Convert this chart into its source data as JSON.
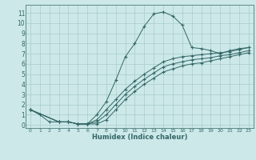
{
  "xlabel": "Humidex (Indice chaleur)",
  "bg_color": "#cce8e8",
  "grid_color": "#aacccc",
  "line_color": "#336666",
  "xlim": [
    -0.5,
    23.5
  ],
  "ylim": [
    -0.3,
    11.8
  ],
  "yticks": [
    0,
    1,
    2,
    3,
    4,
    5,
    6,
    7,
    8,
    9,
    10,
    11
  ],
  "xticks": [
    0,
    1,
    2,
    3,
    4,
    5,
    6,
    7,
    8,
    9,
    10,
    11,
    12,
    13,
    14,
    15,
    16,
    17,
    18,
    19,
    20,
    21,
    22,
    23
  ],
  "line1_x": [
    0,
    1,
    2,
    3,
    4,
    5,
    6,
    7,
    8,
    9,
    10,
    11,
    12,
    13,
    14,
    15,
    16,
    17,
    18,
    19,
    20,
    21,
    22,
    23
  ],
  "line1_y": [
    1.5,
    1.0,
    0.3,
    0.3,
    0.3,
    0.1,
    0.1,
    1.0,
    2.3,
    4.4,
    6.7,
    8.0,
    9.7,
    10.9,
    11.1,
    10.7,
    9.8,
    7.6,
    7.5,
    7.3,
    7.0,
    7.3,
    7.5,
    7.6
  ],
  "line2_x": [
    0,
    3,
    4,
    5,
    6,
    7,
    8,
    9,
    10,
    11,
    12,
    13,
    14,
    15,
    16,
    17,
    18,
    19,
    20,
    21,
    22,
    23
  ],
  "line2_y": [
    1.5,
    0.3,
    0.3,
    0.1,
    0.1,
    0.5,
    1.5,
    2.5,
    3.5,
    4.3,
    5.0,
    5.6,
    6.2,
    6.5,
    6.7,
    6.8,
    6.9,
    7.0,
    7.1,
    7.2,
    7.4,
    7.6
  ],
  "line3_x": [
    0,
    3,
    4,
    5,
    6,
    7,
    8,
    9,
    10,
    11,
    12,
    13,
    14,
    15,
    16,
    17,
    18,
    19,
    20,
    21,
    22,
    23
  ],
  "line3_y": [
    1.5,
    0.3,
    0.3,
    0.1,
    0.1,
    0.3,
    1.0,
    2.0,
    3.0,
    3.8,
    4.5,
    5.1,
    5.7,
    6.0,
    6.2,
    6.4,
    6.5,
    6.6,
    6.8,
    6.9,
    7.1,
    7.3
  ],
  "line4_x": [
    0,
    3,
    4,
    5,
    6,
    7,
    8,
    9,
    10,
    11,
    12,
    13,
    14,
    15,
    16,
    17,
    18,
    19,
    20,
    21,
    22,
    23
  ],
  "line4_y": [
    1.5,
    0.3,
    0.3,
    0.1,
    0.1,
    0.1,
    0.5,
    1.5,
    2.5,
    3.3,
    4.0,
    4.6,
    5.2,
    5.5,
    5.8,
    6.0,
    6.1,
    6.3,
    6.5,
    6.7,
    6.9,
    7.1
  ]
}
